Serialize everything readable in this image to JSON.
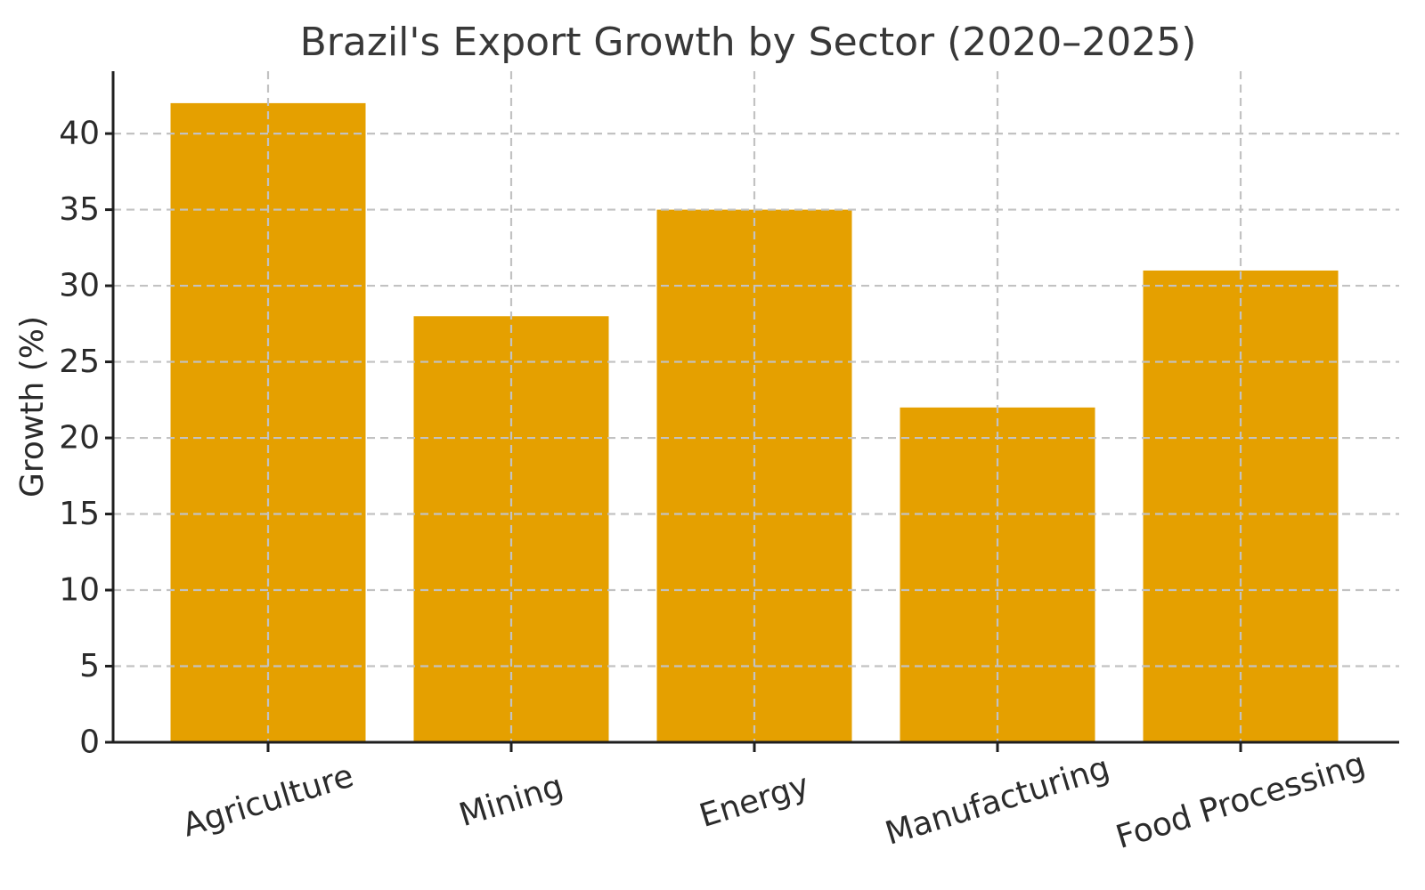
{
  "figure": {
    "background": "#FFFFFF"
  },
  "chart_data": {
    "type": "bar",
    "title": "Brazil's Export Growth by Sector (2020–2025)",
    "categories": [
      "Agriculture",
      "Mining",
      "Energy",
      "Manufacturing",
      "Food Processing"
    ],
    "values": [
      42,
      28,
      35,
      22,
      31
    ],
    "xlabel": "",
    "ylabel": "Growth (%)",
    "ylim": [
      0,
      44.1
    ],
    "yticks": [
      0,
      5,
      10,
      15,
      20,
      25,
      30,
      35,
      40
    ],
    "x_tick_rotation_deg": 17,
    "legend": "none",
    "grid": {
      "show": true,
      "axis": "both",
      "style": "dashed",
      "above_bars": true,
      "color": "#C2C2C2"
    },
    "bar_color": "#E5A000",
    "spine_color": "#1F1F1F",
    "text_color": "#2B2B2B",
    "title_color": "#383838"
  }
}
